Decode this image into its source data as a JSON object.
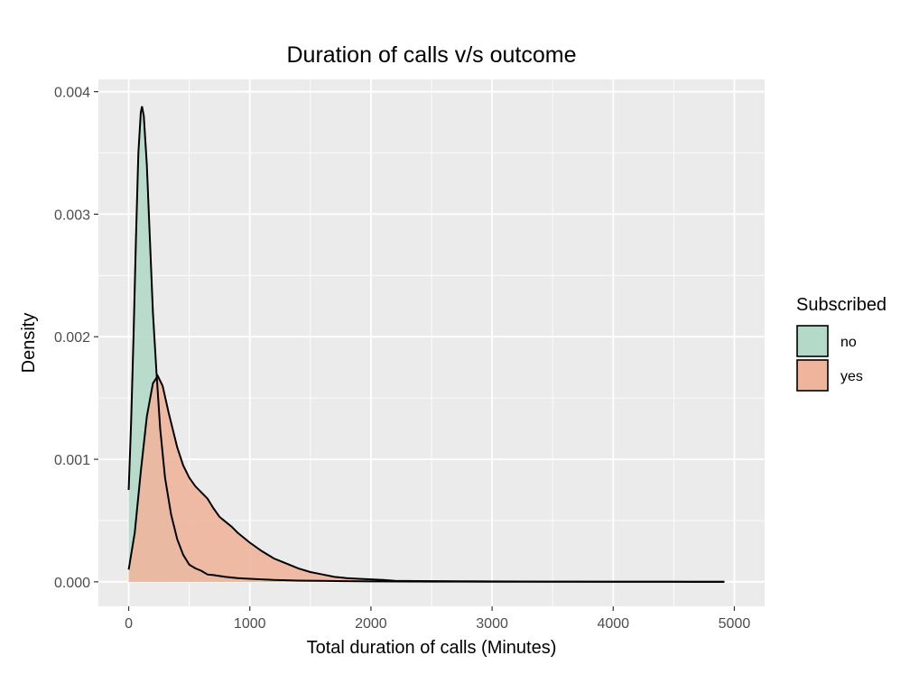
{
  "chart_data": {
    "type": "area",
    "title": "Duration of calls v/s outcome",
    "xlabel": "Total duration of calls (Minutes)",
    "ylabel": "Density",
    "xlim": [
      -250,
      5250
    ],
    "ylim": [
      -0.0002,
      0.0041
    ],
    "x_ticks": [
      0,
      1000,
      2000,
      3000,
      4000,
      5000
    ],
    "x_tick_labels": [
      "0",
      "1000",
      "2000",
      "3000",
      "4000",
      "5000"
    ],
    "y_ticks": [
      0.0,
      0.001,
      0.002,
      0.003,
      0.004
    ],
    "y_tick_labels": [
      "0.000",
      "0.001",
      "0.002",
      "0.003",
      "0.004"
    ],
    "grid": true,
    "panel_background": "#ebebeb",
    "legend": {
      "title": "Subscribed",
      "position": "right"
    },
    "series": [
      {
        "name": "no",
        "fill": "#b3d9c9",
        "stroke": "#000000",
        "points": [
          [
            0,
            0.00075
          ],
          [
            20,
            0.0013
          ],
          [
            40,
            0.002
          ],
          [
            60,
            0.0028
          ],
          [
            80,
            0.0035
          ],
          [
            100,
            0.00383
          ],
          [
            110,
            0.00388
          ],
          [
            125,
            0.0038
          ],
          [
            150,
            0.0034
          ],
          [
            175,
            0.0028
          ],
          [
            200,
            0.0022
          ],
          [
            230,
            0.0017
          ],
          [
            260,
            0.00125
          ],
          [
            300,
            0.00085
          ],
          [
            350,
            0.00055
          ],
          [
            400,
            0.00035
          ],
          [
            450,
            0.00022
          ],
          [
            500,
            0.00014
          ],
          [
            550,
            0.00011
          ],
          [
            600,
            9e-05
          ],
          [
            650,
            6e-05
          ],
          [
            700,
            5.5e-05
          ],
          [
            800,
            4e-05
          ],
          [
            900,
            3e-05
          ],
          [
            1000,
            2.5e-05
          ],
          [
            1200,
            1.5e-05
          ],
          [
            1400,
            1e-05
          ],
          [
            1600,
            8e-06
          ],
          [
            1800,
            5e-06
          ],
          [
            2000,
            3e-06
          ],
          [
            2500,
            2e-06
          ],
          [
            3000,
            1e-06
          ],
          [
            3500,
            5e-07
          ],
          [
            4000,
            3e-07
          ],
          [
            4500,
            2e-07
          ],
          [
            4918,
            1e-07
          ]
        ]
      },
      {
        "name": "yes",
        "fill": "#efb59c",
        "stroke": "#000000",
        "points": [
          [
            0,
            0.0001
          ],
          [
            50,
            0.0004
          ],
          [
            100,
            0.0009
          ],
          [
            150,
            0.00135
          ],
          [
            200,
            0.00162
          ],
          [
            240,
            0.00168
          ],
          [
            280,
            0.0016
          ],
          [
            330,
            0.00138
          ],
          [
            400,
            0.0011
          ],
          [
            450,
            0.00095
          ],
          [
            500,
            0.00085
          ],
          [
            550,
            0.00078
          ],
          [
            600,
            0.00073
          ],
          [
            650,
            0.00068
          ],
          [
            700,
            0.0006
          ],
          [
            750,
            0.00053
          ],
          [
            800,
            0.00049
          ],
          [
            850,
            0.00045
          ],
          [
            900,
            0.0004
          ],
          [
            1000,
            0.00032
          ],
          [
            1100,
            0.00025
          ],
          [
            1200,
            0.00019
          ],
          [
            1300,
            0.00015
          ],
          [
            1400,
            0.00011
          ],
          [
            1500,
            8e-05
          ],
          [
            1600,
            6e-05
          ],
          [
            1700,
            4e-05
          ],
          [
            1800,
            3e-05
          ],
          [
            1900,
            2.5e-05
          ],
          [
            2000,
            2e-05
          ],
          [
            2100,
            1.5e-05
          ],
          [
            2200,
            8e-06
          ],
          [
            2400,
            6e-06
          ],
          [
            2600,
            5e-06
          ],
          [
            2800,
            4e-06
          ],
          [
            3000,
            3e-06
          ],
          [
            3500,
            1.5e-06
          ],
          [
            4000,
            8e-07
          ],
          [
            4500,
            4e-07
          ],
          [
            4918,
            2e-07
          ]
        ]
      }
    ]
  }
}
